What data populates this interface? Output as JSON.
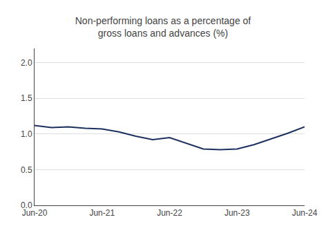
{
  "chart_data": {
    "type": "line",
    "title": "Non-performing loans as a percentage of\ngross loans and advances (%)",
    "categories": [
      "Jun-20",
      null,
      null,
      null,
      "Jun-21",
      null,
      null,
      null,
      "Jun-22",
      null,
      null,
      null,
      "Jun-23",
      null,
      null,
      null,
      "Jun-24"
    ],
    "values": [
      1.12,
      1.09,
      1.1,
      1.08,
      1.07,
      1.03,
      0.97,
      0.92,
      0.95,
      0.87,
      0.79,
      0.78,
      0.79,
      0.85,
      0.93,
      1.01,
      1.1
    ],
    "color": "#1b2f5e",
    "ylim": [
      0.0,
      2.2
    ],
    "yticks": [
      {
        "value": 0.0,
        "label": "0.0"
      },
      0.5,
      {
        "value": 1.0,
        "label": "1.0"
      },
      1.5,
      {
        "value": 2.0,
        "label": "2.0"
      }
    ],
    "grid": true
  }
}
